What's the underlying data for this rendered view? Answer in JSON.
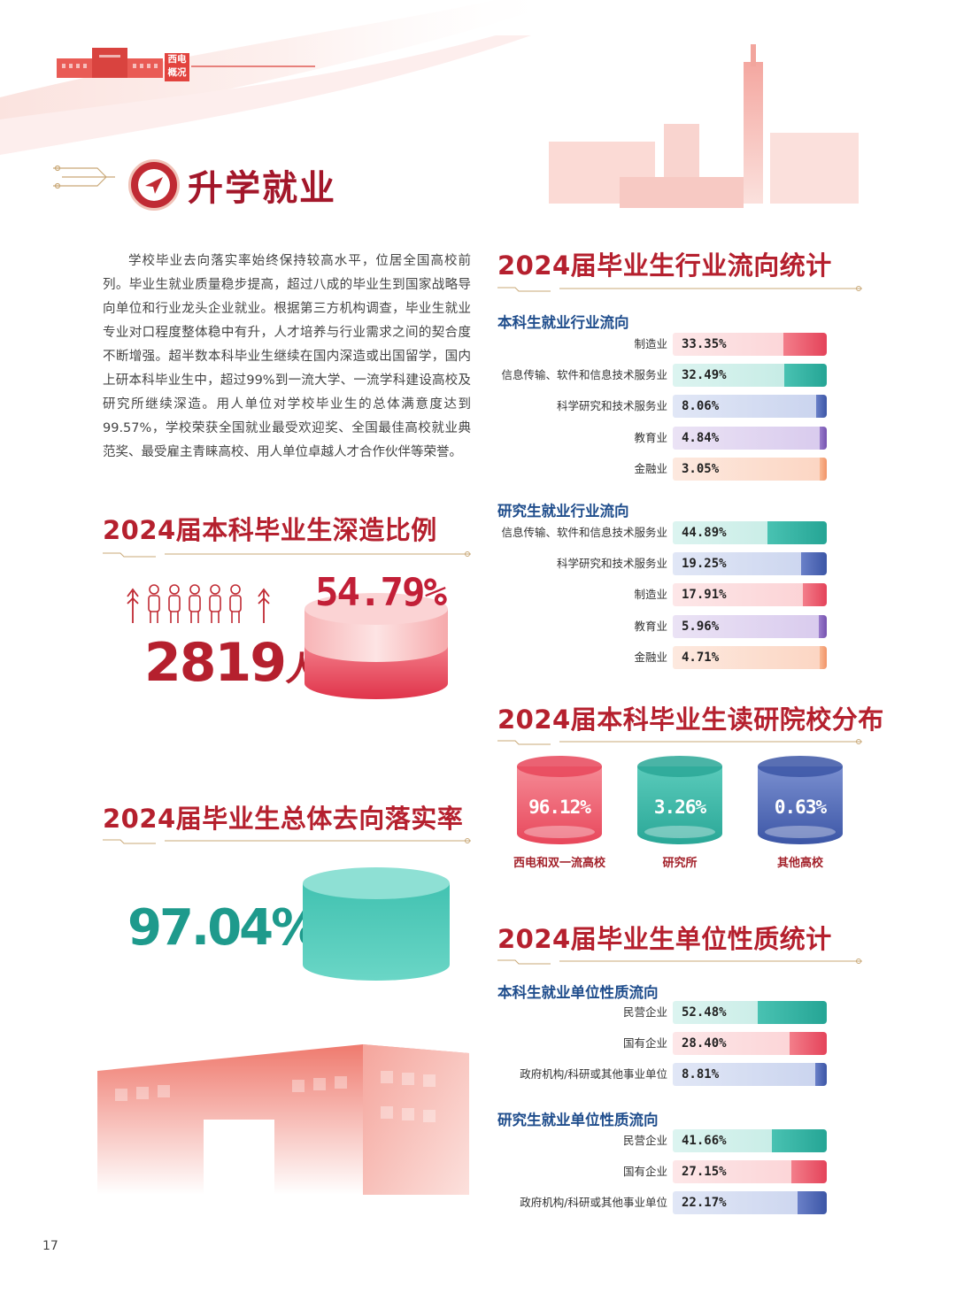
{
  "header": {
    "logo_text_1": "西电",
    "logo_text_2": "概况"
  },
  "page_title": "升学就业",
  "intro": "学校毕业去向落实率始终保持较高水平，位居全国高校前列。毕业生就业质量稳步提高，超过八成的毕业生到国家战略导向单位和行业龙头企业就业。根据第三方机构调查，毕业生就业专业对口程度整体稳中有升，人才培养与行业需求之间的契合度不断增强。超半数本科毕业生继续在国内深造或出国留学，国内上研本科毕业生中，超过99%到一流大学、一流学科建设高校及研究所继续深造。用人单位对学校毕业生的总体满意度达到99.57%，学校荣获全国就业最受欢迎奖、全国最佳高校就业典范奖、最受雇主青睐高校、用人单位卓越人才合作伙伴等荣誉。",
  "further_study": {
    "title": "2024届本科毕业生深造比例",
    "count_number": "2819",
    "count_unit": "人",
    "rate": "54.79%"
  },
  "overall": {
    "title": "2024届毕业生总体去向落实率",
    "rate": "97.04%"
  },
  "industry": {
    "title": "2024届毕业生行业流向统计",
    "ug_title": "本科生就业行业流向",
    "pg_title": "研究生就业行业流向"
  },
  "schools": {
    "title": "2024届本科毕业生读研院校分布"
  },
  "unit": {
    "title": "2024届毕业生单位性质统计",
    "ug_title": "本科生就业单位性质流向",
    "pg_title": "研究生就业单位性质流向"
  },
  "page_number": "17",
  "colors": {
    "red": "#e8404f",
    "teal": "#23a99b",
    "blue": "#3e59a6",
    "purple": "#7a57b0",
    "orange": "#f4a07a",
    "title": "#b5202e",
    "subtitle": "#1f4d8c"
  },
  "chart_data": [
    {
      "type": "bar",
      "orientation": "horizontal",
      "subtitle": "本科生就业行业流向",
      "categories": [
        "制造业",
        "信息传输、软件和信息技术服务业",
        "科学研究和技术服务业",
        "教育业",
        "金融业"
      ],
      "values": [
        33.35,
        32.49,
        8.06,
        4.84,
        3.05
      ],
      "labels": [
        "33.35%",
        "32.49%",
        "8.06%",
        "4.84%",
        "3.05%"
      ],
      "colors": [
        "red",
        "teal",
        "blue",
        "purple",
        "orange"
      ]
    },
    {
      "type": "bar",
      "orientation": "horizontal",
      "subtitle": "研究生就业行业流向",
      "categories": [
        "信息传输、软件和信息技术服务业",
        "科学研究和技术服务业",
        "制造业",
        "教育业",
        "金融业"
      ],
      "values": [
        44.89,
        19.25,
        17.91,
        5.96,
        4.71
      ],
      "labels": [
        "44.89%",
        "19.25%",
        "17.91%",
        "5.96%",
        "4.71%"
      ],
      "colors": [
        "teal",
        "blue",
        "red",
        "purple",
        "orange"
      ]
    },
    {
      "type": "bar",
      "subtitle": "2024届本科毕业生读研院校分布",
      "categories": [
        "西电和双一流高校",
        "研究所",
        "其他高校"
      ],
      "values": [
        96.12,
        3.26,
        0.63
      ],
      "labels": [
        "96.12%",
        "3.26%",
        "0.63%"
      ],
      "colors": [
        "red",
        "teal",
        "blue"
      ]
    },
    {
      "type": "bar",
      "orientation": "horizontal",
      "subtitle": "本科生就业单位性质流向",
      "categories": [
        "民营企业",
        "国有企业",
        "政府机构/科研或其他事业单位"
      ],
      "values": [
        52.48,
        28.4,
        8.81
      ],
      "labels": [
        "52.48%",
        "28.40%",
        "8.81%"
      ],
      "colors": [
        "teal",
        "red",
        "blue"
      ]
    },
    {
      "type": "bar",
      "orientation": "horizontal",
      "subtitle": "研究生就业单位性质流向",
      "categories": [
        "民营企业",
        "国有企业",
        "政府机构/科研或其他事业单位"
      ],
      "values": [
        41.66,
        27.15,
        22.17
      ],
      "labels": [
        "41.66%",
        "27.15%",
        "22.17%"
      ],
      "colors": [
        "teal",
        "red",
        "blue"
      ]
    }
  ]
}
